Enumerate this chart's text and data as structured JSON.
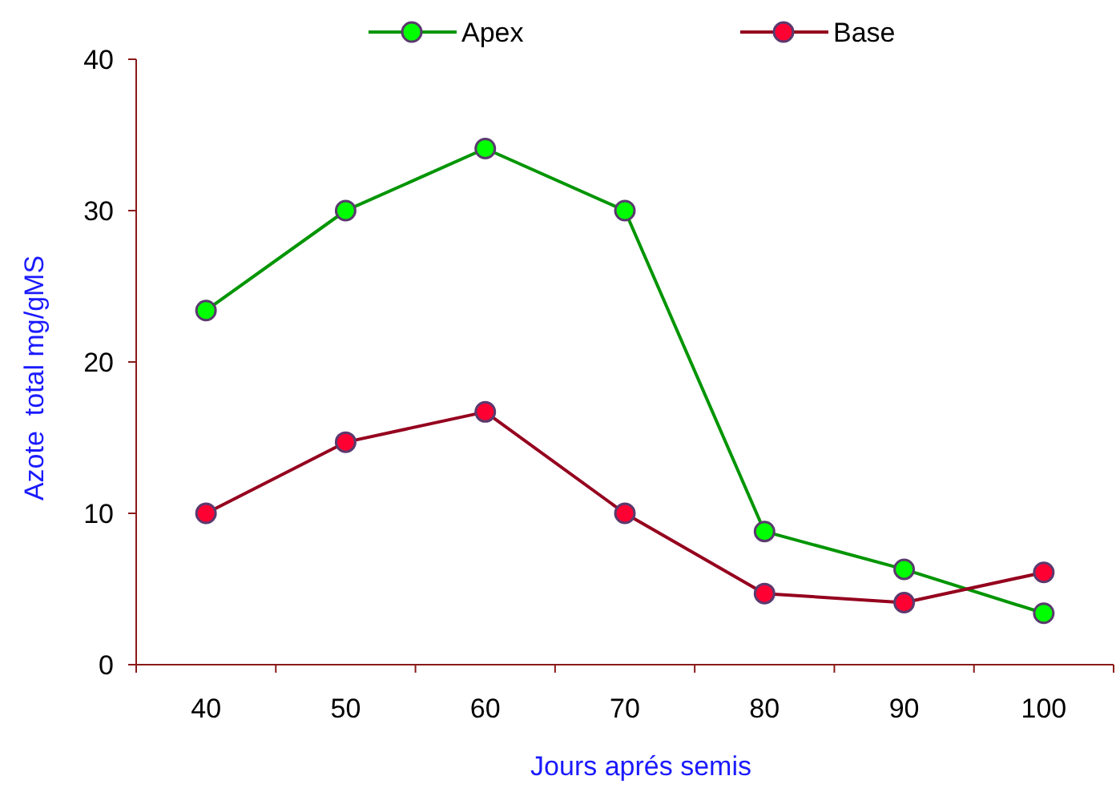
{
  "chart_data": {
    "type": "line",
    "xlabel": "Jours aprés semis",
    "ylabel": "Azote  total mg/gMS",
    "categories": [
      "40",
      "50",
      "60",
      "70",
      "80",
      "90",
      "100"
    ],
    "series": [
      {
        "name": "Apex",
        "color": "#00ff00",
        "values": [
          23.4,
          30,
          34.1,
          30,
          8.8,
          6.3,
          3.4
        ]
      },
      {
        "name": "Base",
        "color": "#ff0033",
        "values": [
          10,
          14.7,
          16.7,
          10,
          4.7,
          4.1,
          6.1
        ]
      }
    ],
    "ylim": [
      0,
      40
    ],
    "yticks": [
      0,
      10,
      20,
      30,
      40
    ],
    "grid": false,
    "legend": "top",
    "marker": "circle",
    "line_style": "solid"
  }
}
